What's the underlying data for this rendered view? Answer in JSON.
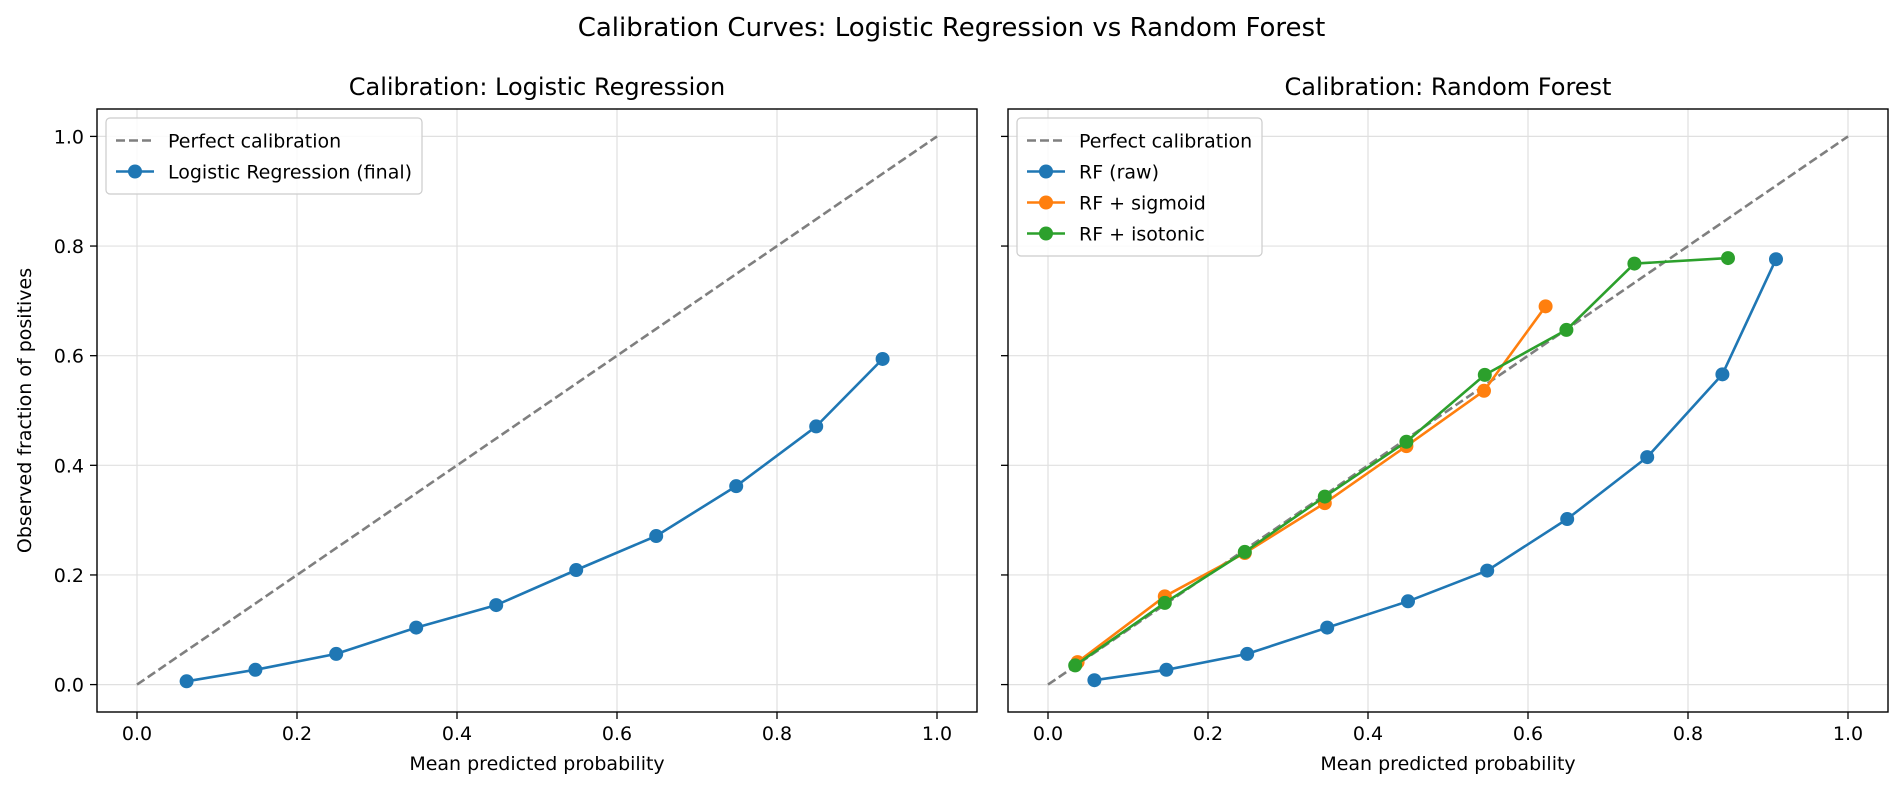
{
  "figure": {
    "suptitle": "Calibration Curves: Logistic Regression vs Random Forest"
  },
  "chart_data": [
    {
      "type": "line",
      "title": "Calibration: Logistic Regression",
      "xlabel": "Mean predicted probability",
      "ylabel": "Observed fraction of positives",
      "xlim": [
        -0.05,
        1.05
      ],
      "ylim": [
        -0.05,
        1.05
      ],
      "xticks": [
        "0.0",
        "0.2",
        "0.4",
        "0.6",
        "0.8",
        "1.0"
      ],
      "yticks": [
        "0.0",
        "0.2",
        "0.4",
        "0.6",
        "0.8",
        "1.0"
      ],
      "grid": true,
      "legend_position": "upper-left",
      "series": [
        {
          "name": "Perfect calibration",
          "color": "#7f7f7f",
          "dashed": true,
          "markers": false,
          "x": [
            0,
            1
          ],
          "y": [
            0,
            1
          ]
        },
        {
          "name": "Logistic Regression (final)",
          "color": "#1f77b4",
          "dashed": false,
          "markers": true,
          "x": [
            0.062,
            0.148,
            0.249,
            0.349,
            0.449,
            0.549,
            0.649,
            0.749,
            0.849,
            0.932
          ],
          "y": [
            0.006,
            0.027,
            0.056,
            0.104,
            0.145,
            0.209,
            0.271,
            0.362,
            0.471,
            0.594
          ]
        }
      ]
    },
    {
      "type": "line",
      "title": "Calibration: Random Forest",
      "xlabel": "Mean predicted probability",
      "ylabel": "",
      "xlim": [
        -0.05,
        1.05
      ],
      "ylim": [
        -0.05,
        1.05
      ],
      "xticks": [
        "0.0",
        "0.2",
        "0.4",
        "0.6",
        "0.8",
        "1.0"
      ],
      "yticks": [
        "0.0",
        "0.2",
        "0.4",
        "0.6",
        "0.8",
        "1.0"
      ],
      "show_ytick_labels": false,
      "grid": true,
      "legend_position": "upper-left",
      "series": [
        {
          "name": "Perfect calibration",
          "color": "#7f7f7f",
          "dashed": true,
          "markers": false,
          "x": [
            0,
            1
          ],
          "y": [
            0,
            1
          ]
        },
        {
          "name": "RF (raw)",
          "color": "#1f77b4",
          "dashed": false,
          "markers": true,
          "x": [
            0.058,
            0.148,
            0.249,
            0.349,
            0.45,
            0.549,
            0.649,
            0.749,
            0.843,
            0.91
          ],
          "y": [
            0.008,
            0.027,
            0.056,
            0.104,
            0.152,
            0.208,
            0.302,
            0.415,
            0.566,
            0.776
          ]
        },
        {
          "name": "RF + sigmoid",
          "color": "#ff7f0e",
          "dashed": false,
          "markers": true,
          "x": [
            0.037,
            0.146,
            0.246,
            0.346,
            0.448,
            0.545,
            0.622
          ],
          "y": [
            0.041,
            0.161,
            0.24,
            0.331,
            0.435,
            0.536,
            0.69
          ]
        },
        {
          "name": "RF + isotonic",
          "color": "#2ca02c",
          "dashed": false,
          "markers": true,
          "x": [
            0.034,
            0.146,
            0.246,
            0.346,
            0.448,
            0.546,
            0.648,
            0.733,
            0.85
          ],
          "y": [
            0.035,
            0.149,
            0.242,
            0.343,
            0.443,
            0.565,
            0.647,
            0.768,
            0.778
          ]
        }
      ]
    }
  ]
}
